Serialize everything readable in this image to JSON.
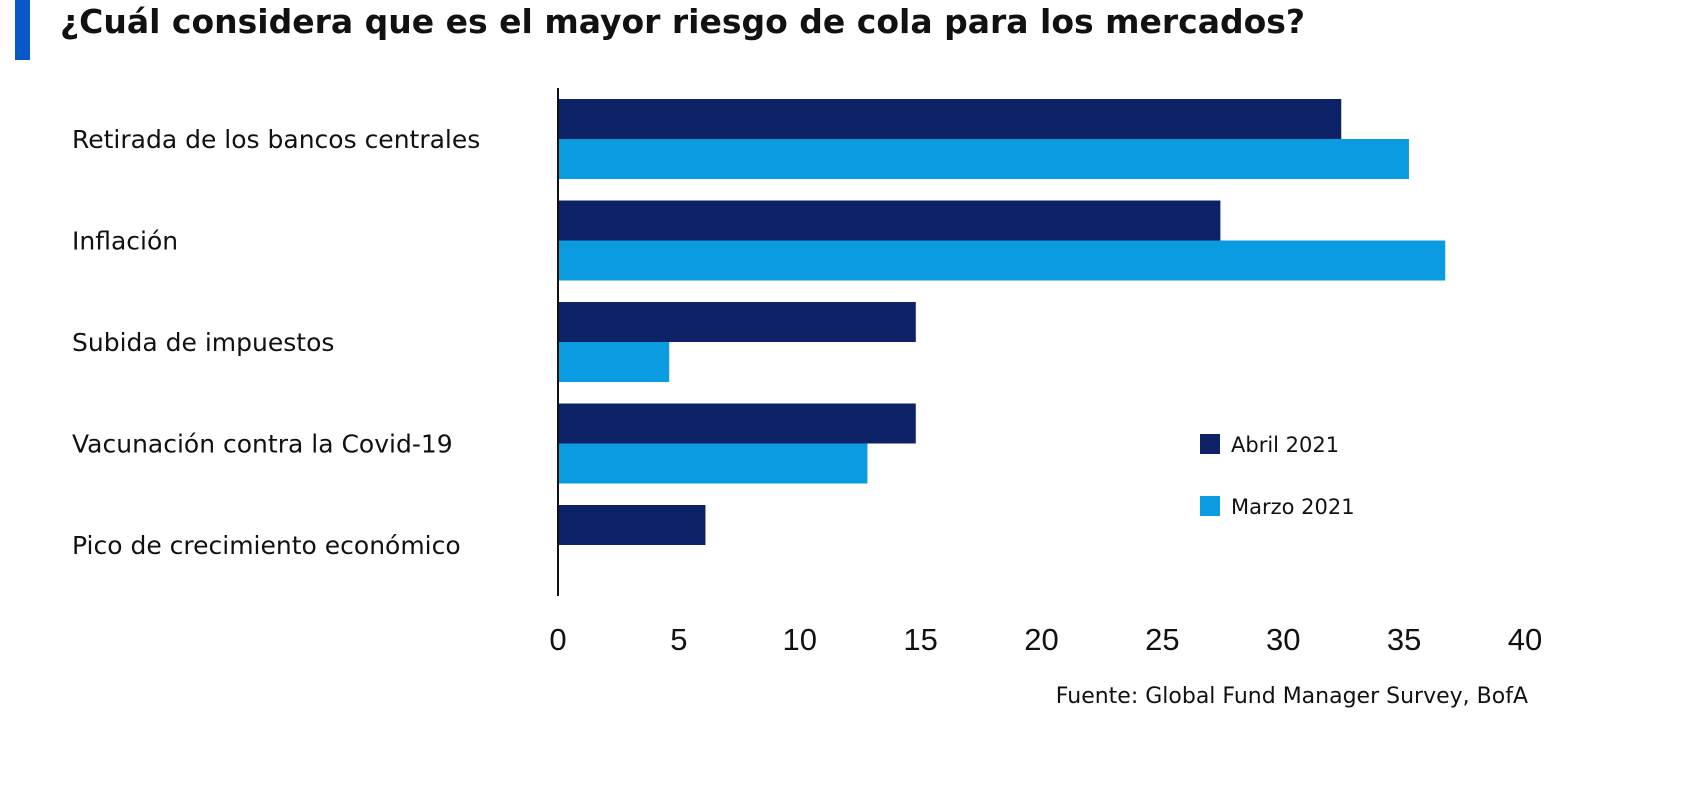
{
  "title": "¿Cuál considera que es el mayor riesgo de cola para los mercados?",
  "source": "Fuente: Global Fund Manager Survey, BofA",
  "colors": {
    "accent": "#0a58c8",
    "abril": "#0d2266",
    "marzo": "#0a9be0"
  },
  "chart_data": {
    "type": "bar",
    "orientation": "horizontal",
    "title": "¿Cuál considera que es el mayor riesgo de cola para los mercados?",
    "categories": [
      "Retirada de los bancos centrales",
      "Inflación",
      "Subida de impuestos",
      "Vacunación contra la Covid-19",
      "Pico de crecimiento económico"
    ],
    "series": [
      {
        "name": "Abril 2021",
        "color": "#0d2266",
        "values": [
          32.4,
          27.4,
          14.8,
          14.8,
          6.1
        ]
      },
      {
        "name": "Marzo 2021",
        "color": "#0a9be0",
        "values": [
          35.2,
          36.7,
          4.6,
          12.8,
          null
        ]
      }
    ],
    "xlim": [
      0,
      40
    ],
    "xticks": [
      "0",
      "5",
      "10",
      "15",
      "20",
      "25",
      "30",
      "35",
      "40"
    ],
    "grid": false,
    "legend": "right"
  }
}
